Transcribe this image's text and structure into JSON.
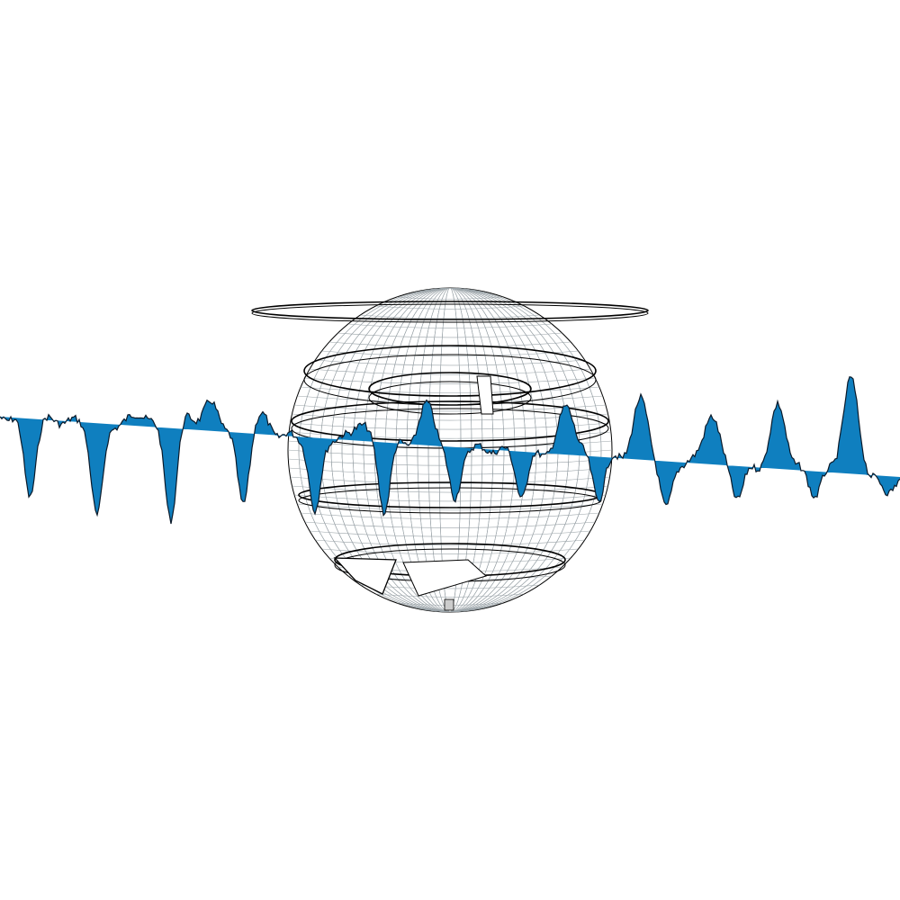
{
  "colors": {
    "background": "#ffffff",
    "wave_fill": "#0f7fbf",
    "wave_stroke": "#0b1a2a",
    "sphere_line": "#000000",
    "sphere_grid_light": "#9aa3a8",
    "band_fill": "#ffffff"
  },
  "shapes": {
    "sphere": "wireframe-globe",
    "wave": "blue-signal-ribbon"
  }
}
